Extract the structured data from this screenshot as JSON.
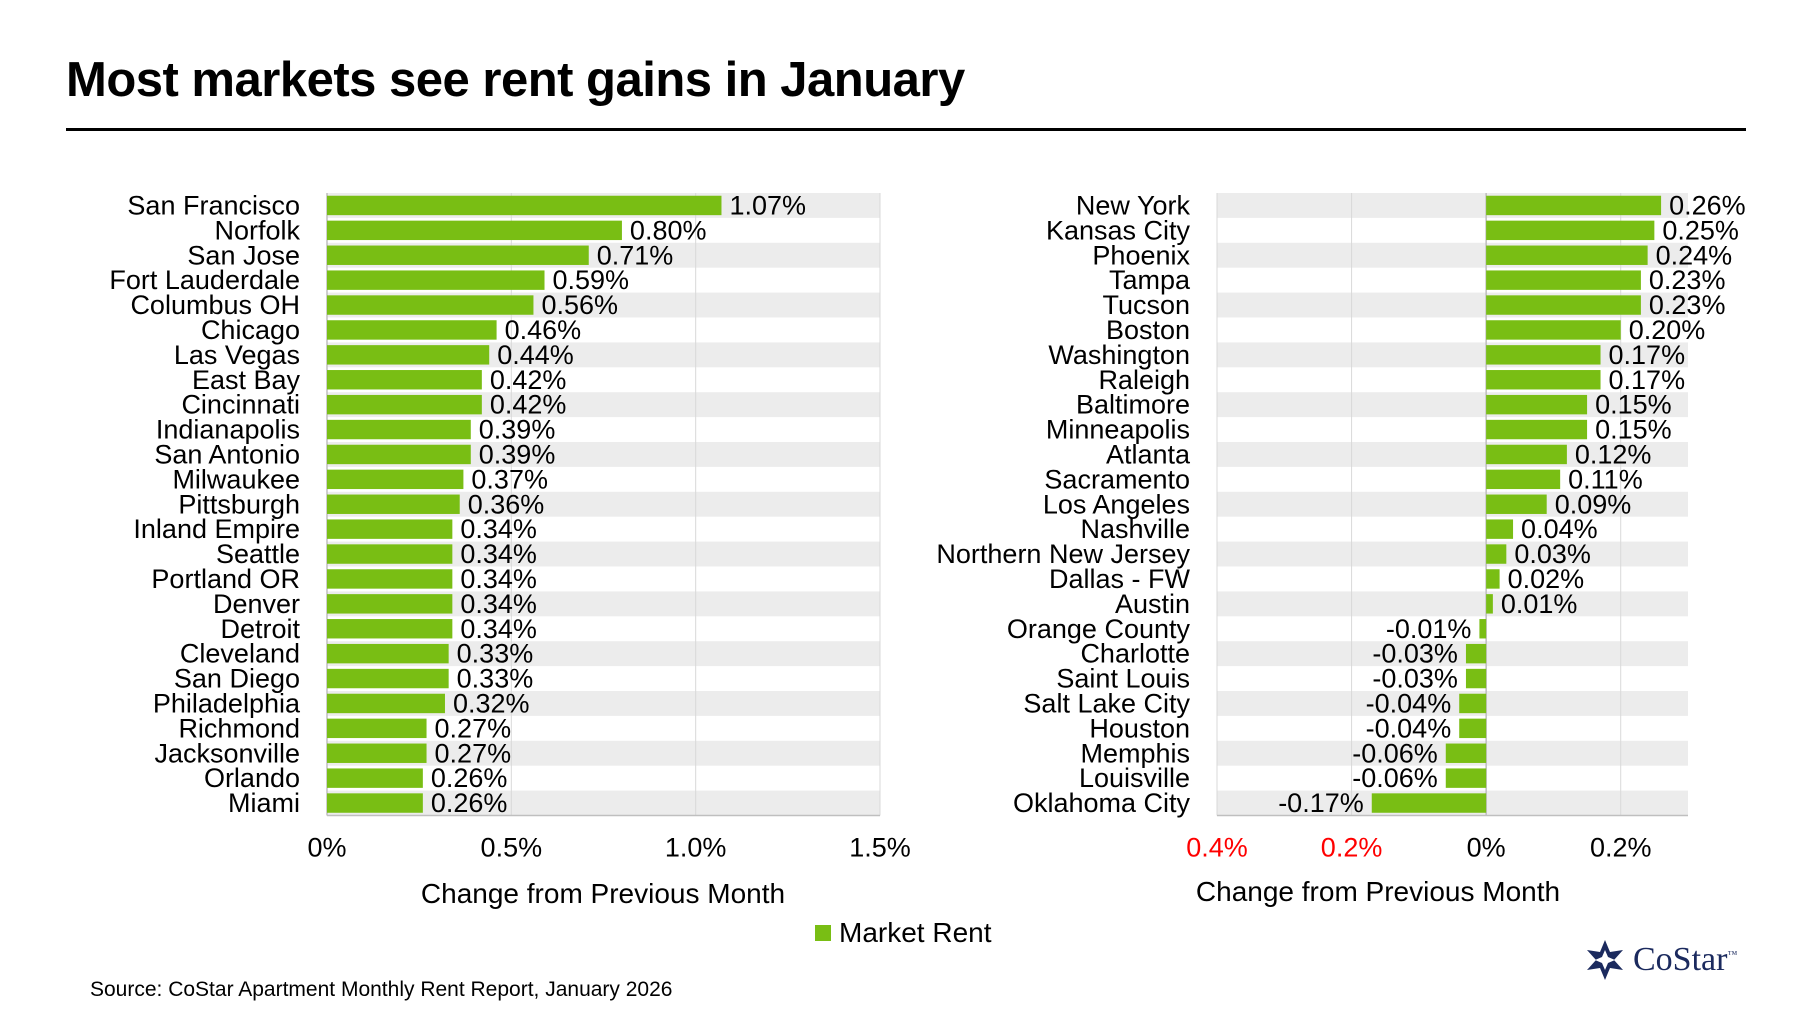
{
  "title": "Most markets see rent gains in January",
  "source": "Source: CoStar Apartment Monthly Rent Report, January 2026",
  "legend": {
    "label": "Market Rent",
    "color": "#79be14"
  },
  "logo": {
    "text": "CoStar",
    "tm": "™",
    "icon": "costar-star-icon"
  },
  "colors": {
    "bar": "#79be14",
    "band": "#ececec",
    "grid": "#d9d9d9",
    "neg_tick": "#ff0000"
  },
  "chart_data": [
    {
      "type": "bar",
      "orientation": "horizontal",
      "xlabel": "Change from Previous Month",
      "xlim": [
        0,
        1.5
      ],
      "ticks": [
        {
          "value": 0,
          "label": "0%"
        },
        {
          "value": 0.5,
          "label": "0.5%"
        },
        {
          "value": 1.0,
          "label": "1.0%"
        },
        {
          "value": 1.5,
          "label": "1.5%"
        }
      ],
      "categories": [
        "San Francisco",
        "Norfolk",
        "San Jose",
        "Fort Lauderdale",
        "Columbus OH",
        "Chicago",
        "Las Vegas",
        "East Bay",
        "Cincinnati",
        "Indianapolis",
        "San Antonio",
        "Milwaukee",
        "Pittsburgh",
        "Inland Empire",
        "Seattle",
        "Portland OR",
        "Denver",
        "Detroit",
        "Cleveland",
        "San Diego",
        "Philadelphia",
        "Richmond",
        "Jacksonville",
        "Orlando",
        "Miami"
      ],
      "values": [
        1.07,
        0.8,
        0.71,
        0.59,
        0.56,
        0.46,
        0.44,
        0.42,
        0.42,
        0.39,
        0.39,
        0.37,
        0.36,
        0.34,
        0.34,
        0.34,
        0.34,
        0.34,
        0.33,
        0.33,
        0.32,
        0.27,
        0.27,
        0.26,
        0.26
      ],
      "labels": [
        "1.07%",
        "0.80%",
        "0.71%",
        "0.59%",
        "0.56%",
        "0.46%",
        "0.44%",
        "0.42%",
        "0.42%",
        "0.39%",
        "0.39%",
        "0.37%",
        "0.36%",
        "0.34%",
        "0.34%",
        "0.34%",
        "0.34%",
        "0.34%",
        "0.33%",
        "0.33%",
        "0.32%",
        "0.27%",
        "0.27%",
        "0.26%",
        "0.26%"
      ]
    },
    {
      "type": "bar",
      "orientation": "horizontal",
      "xlabel": "Change from Previous Month",
      "xlim": [
        -0.4,
        0.3
      ],
      "ticks": [
        {
          "value": -0.4,
          "label": "0.4%",
          "negative": true
        },
        {
          "value": -0.2,
          "label": "0.2%",
          "negative": true
        },
        {
          "value": 0,
          "label": "0%",
          "negative": false
        },
        {
          "value": 0.2,
          "label": "0.2%",
          "negative": false
        }
      ],
      "categories": [
        "New York",
        "Kansas City",
        "Phoenix",
        "Tampa",
        "Tucson",
        "Boston",
        "Washington",
        "Raleigh",
        "Baltimore",
        "Minneapolis",
        "Atlanta",
        "Sacramento",
        "Los Angeles",
        "Nashville",
        "Northern New Jersey",
        "Dallas - FW",
        "Austin",
        "Orange County",
        "Charlotte",
        "Saint Louis",
        "Salt Lake City",
        "Houston",
        "Memphis",
        "Louisville",
        "Oklahoma City"
      ],
      "values": [
        0.26,
        0.25,
        0.24,
        0.23,
        0.23,
        0.2,
        0.17,
        0.17,
        0.15,
        0.15,
        0.12,
        0.11,
        0.09,
        0.04,
        0.03,
        0.02,
        0.01,
        -0.01,
        -0.03,
        -0.03,
        -0.04,
        -0.04,
        -0.06,
        -0.06,
        -0.17
      ],
      "labels": [
        "0.26%",
        "0.25%",
        "0.24%",
        "0.23%",
        "0.23%",
        "0.20%",
        "0.17%",
        "0.17%",
        "0.15%",
        "0.15%",
        "0.12%",
        "0.11%",
        "0.09%",
        "0.04%",
        "0.03%",
        "0.02%",
        "0.01%",
        "-0.01%",
        "-0.03%",
        "-0.03%",
        "-0.04%",
        "-0.04%",
        "-0.06%",
        "-0.06%",
        "-0.17%"
      ]
    }
  ]
}
